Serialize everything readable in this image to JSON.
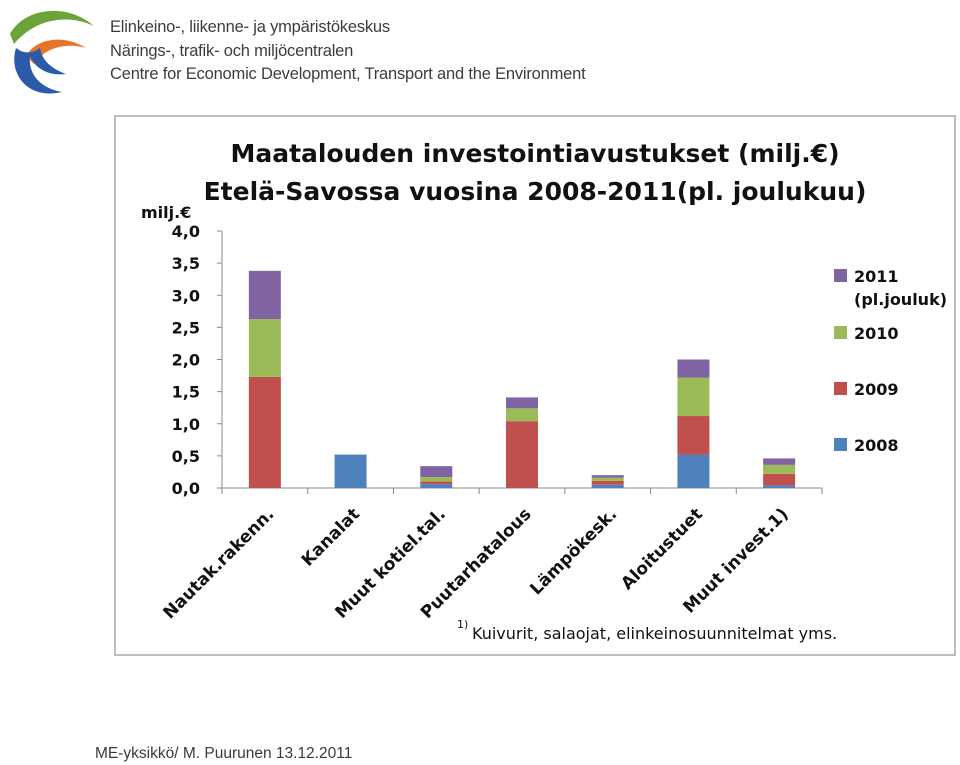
{
  "header": {
    "org_name_fi": "Elinkeino-, liikenne- ja ympäristökeskus",
    "org_name_sv": "Närings-, trafik- och miljöcentralen",
    "org_name_en": "Centre for Economic Development, Transport and the Environment"
  },
  "colors": {
    "2008": "#4f81bd",
    "2009": "#c0504d",
    "2010": "#9bbb59",
    "2011": "#8064a2",
    "logo_green": "#6ba539",
    "logo_orange": "#e8742a",
    "logo_blue": "#2a5aa8"
  },
  "chart_data": {
    "type": "bar",
    "stacked": true,
    "title_line1": "Maatalouden investointiavustukset (milj.€)",
    "title_line2": "Etelä-Savossa vuosina 2008-2011(pl. joulukuu)",
    "ylabel": "milj.€",
    "ylim": [
      0,
      4
    ],
    "ytick_values": [
      0,
      0.5,
      1,
      1.5,
      2,
      2.5,
      3,
      3.5,
      4
    ],
    "ytick_labels": [
      "0,0",
      "0,5",
      "1,0",
      "1,5",
      "2,0",
      "2,5",
      "3,0",
      "3,5",
      "4,0"
    ],
    "grid": false,
    "legend_position": "right",
    "categories": [
      "Nautak.rakenn.",
      "Kanalat",
      "Muut kotiel.tal.",
      "Puutarhatalous",
      "Lämpökesk.",
      "Aloitustuet",
      "Muut invest.1)"
    ],
    "series": [
      {
        "name": "2008",
        "values": [
          0.0,
          0.52,
          0.06,
          0.0,
          0.05,
          0.52,
          0.04
        ]
      },
      {
        "name": "2009",
        "values": [
          1.73,
          0.0,
          0.04,
          1.04,
          0.06,
          0.6,
          0.18
        ]
      },
      {
        "name": "2010",
        "values": [
          0.9,
          0.0,
          0.07,
          0.2,
          0.05,
          0.6,
          0.14
        ]
      },
      {
        "name": "2011",
        "values": [
          0.75,
          0.0,
          0.17,
          0.17,
          0.04,
          0.28,
          0.1
        ]
      }
    ],
    "legend": [
      {
        "series": "2011",
        "lines": [
          "2011",
          "(pl.jouluk)"
        ]
      },
      {
        "series": "2010",
        "lines": [
          "2010"
        ]
      },
      {
        "series": "2009",
        "lines": [
          "2009"
        ]
      },
      {
        "series": "2008",
        "lines": [
          "2008"
        ]
      }
    ],
    "footnote_marker": "1)",
    "footnote_text": "Kuivurit, salaojat,  elinkeinosuunnitelmat  yms."
  },
  "footer": {
    "text": "ME-yksikkö/ M. Puurunen 13.12.2011"
  }
}
